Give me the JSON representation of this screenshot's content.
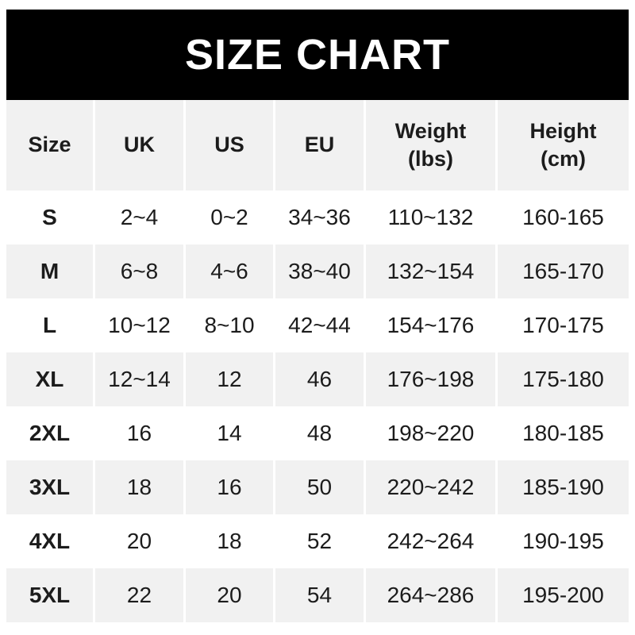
{
  "title": "SIZE CHART",
  "colors": {
    "banner_bg": "#000000",
    "banner_text": "#ffffff",
    "page_bg": "#ffffff",
    "alt_row_bg": "#f1f1f1",
    "text": "#1c1c1c"
  },
  "table": {
    "headers": [
      "Size",
      "UK",
      "US",
      "EU",
      "Weight\n(lbs)",
      "Height\n(cm)"
    ],
    "rows": [
      [
        "S",
        "2~4",
        "0~2",
        "34~36",
        "110~132",
        "160-165"
      ],
      [
        "M",
        "6~8",
        "4~6",
        "38~40",
        "132~154",
        "165-170"
      ],
      [
        "L",
        "10~12",
        "8~10",
        "42~44",
        "154~176",
        "170-175"
      ],
      [
        "XL",
        "12~14",
        "12",
        "46",
        "176~198",
        "175-180"
      ],
      [
        "2XL",
        "16",
        "14",
        "48",
        "198~220",
        "180-185"
      ],
      [
        "3XL",
        "18",
        "16",
        "50",
        "220~242",
        "185-190"
      ],
      [
        "4XL",
        "20",
        "18",
        "52",
        "242~264",
        "190-195"
      ],
      [
        "5XL",
        "22",
        "20",
        "54",
        "264~286",
        "195-200"
      ]
    ]
  }
}
